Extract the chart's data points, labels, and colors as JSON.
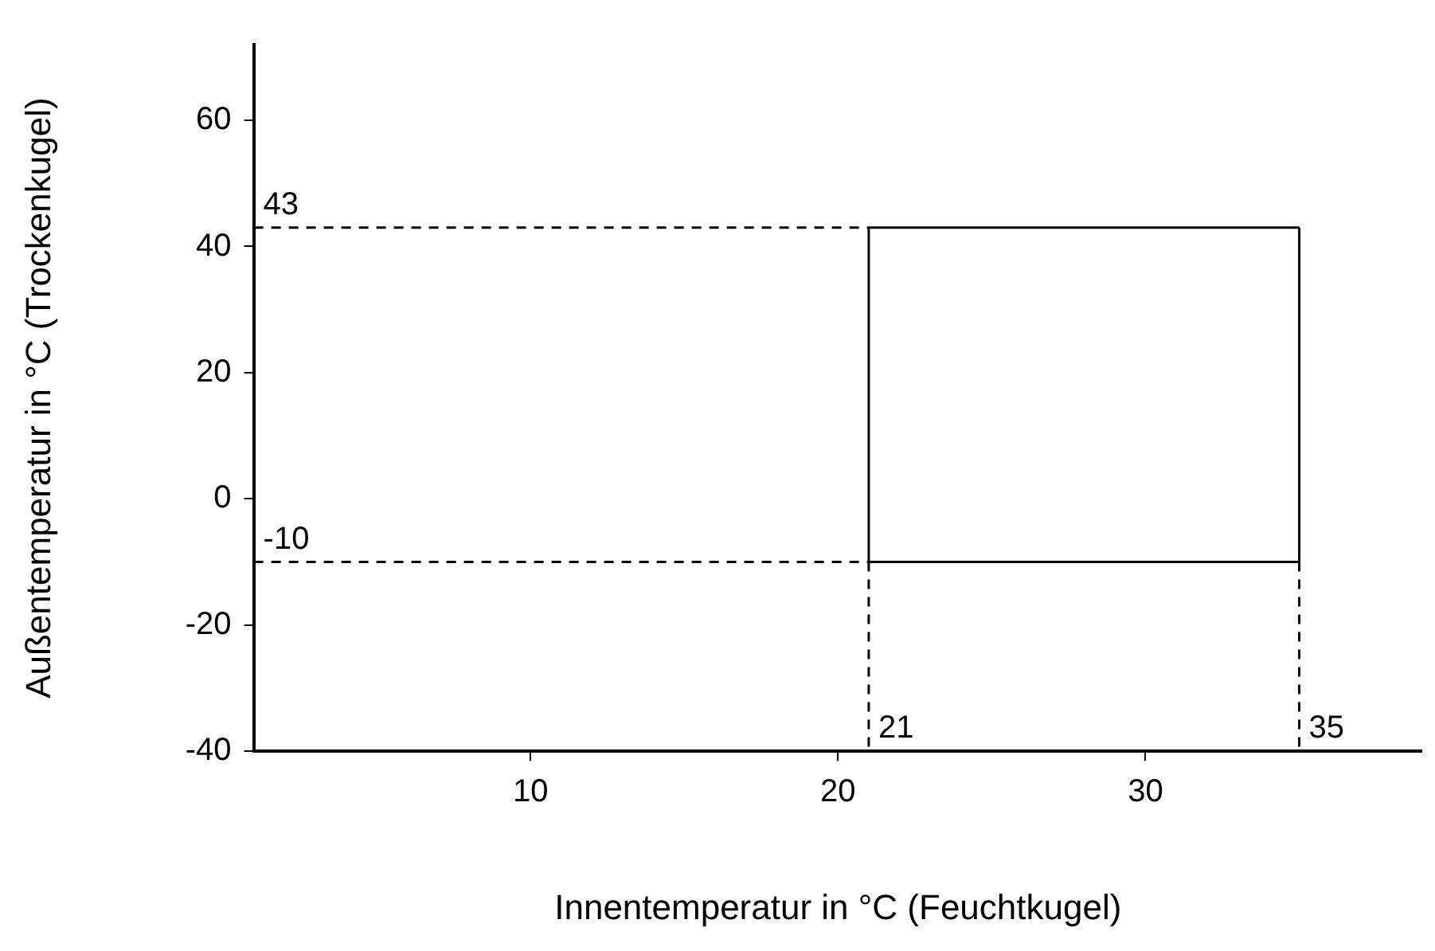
{
  "chart_data": {
    "type": "line",
    "xlabel": "Innentemperatur in °C (Feuchtkugel)",
    "ylabel": "Außentemperatur in °C (Trockenkugel)",
    "xlim": [
      1,
      39
    ],
    "xticks": [
      10,
      20,
      30
    ],
    "ylim": [
      -40,
      72
    ],
    "yticks": [
      -40,
      -20,
      0,
      20,
      40,
      60
    ],
    "grid": false,
    "legend": false,
    "marker": "none",
    "series": [
      {
        "color": "#000000",
        "line_style": "solid",
        "x": [
          21,
          35
        ],
        "values": [
          -10,
          -10
        ]
      },
      {
        "color": "#000000",
        "line_style": "solid",
        "x": [
          21,
          35
        ],
        "values": [
          43,
          43
        ]
      },
      {
        "color": "#000000",
        "line_style": "solid",
        "x": [
          21,
          21
        ],
        "values": [
          -10,
          43
        ]
      },
      {
        "color": "#000000",
        "line_style": "solid",
        "x": [
          35,
          35
        ],
        "values": [
          -10,
          43
        ]
      },
      {
        "color": "#000000",
        "line_style": "dashed",
        "x": [
          1,
          21
        ],
        "values": [
          43,
          43
        ]
      },
      {
        "color": "#000000",
        "line_style": "dashed",
        "x": [
          1,
          21
        ],
        "values": [
          -10,
          -10
        ]
      },
      {
        "color": "#000000",
        "line_style": "dashed",
        "x": [
          21,
          21
        ],
        "values": [
          -10,
          -40
        ]
      },
      {
        "color": "#000000",
        "line_style": "dashed",
        "x": [
          35,
          35
        ],
        "values": [
          -10,
          -40
        ]
      }
    ],
    "annotations": [
      {
        "text": "43",
        "x": 1,
        "y": 43
      },
      {
        "text": "-10",
        "x": 1,
        "y": -10
      },
      {
        "text": "21",
        "x": 21,
        "y": -40
      },
      {
        "text": "35",
        "x": 35,
        "y": -40
      }
    ]
  }
}
